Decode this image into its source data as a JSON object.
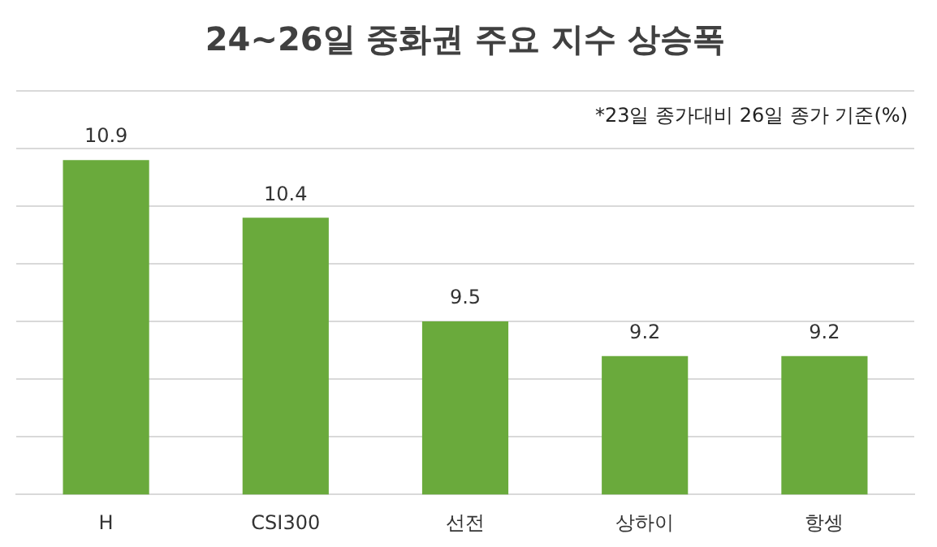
{
  "chart_data": {
    "type": "bar",
    "title": "24~26일 중화권 주요 지수 상승폭",
    "categories": [
      "H",
      "CSI300",
      "선전",
      "상하이",
      "항셍"
    ],
    "values": [
      10.9,
      10.4,
      9.5,
      9.2,
      9.2
    ],
    "color": "#6aaa3c",
    "ylim": [
      8,
      11.5
    ],
    "yticks": [
      {
        "value": 8,
        "label": null
      },
      {
        "value": 8.5,
        "label": null
      },
      {
        "value": 9,
        "label": null
      },
      {
        "value": 9.5,
        "label": null
      },
      {
        "value": 10,
        "label": null
      },
      {
        "value": 10.5,
        "label": null
      },
      {
        "value": 11,
        "label": null
      },
      {
        "value": 11.5,
        "label": null
      }
    ],
    "tick_labels": "x",
    "grid": "y",
    "data_labels": true,
    "legend": false,
    "annotations": [
      "*23일 종가대비 26일 종가 기준(%)"
    ]
  }
}
